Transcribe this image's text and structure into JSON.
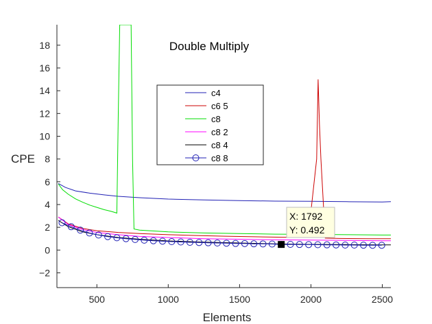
{
  "chart_data": {
    "type": "line",
    "title": "Double Multiply",
    "xlabel": "Elements",
    "ylabel": "CPE",
    "xlim": [
      220,
      2560
    ],
    "ylim": [
      -3.3,
      19.8
    ],
    "x_ticks": [
      500,
      1000,
      1500,
      2000,
      2500
    ],
    "y_ticks": [
      -2,
      0,
      2,
      4,
      6,
      8,
      10,
      12,
      14,
      16,
      18
    ],
    "grid": false,
    "legend_position": "top-center",
    "series": [
      {
        "name": "c4",
        "color": "#1f1fb4",
        "marker": "none",
        "x": [
          230,
          280,
          350,
          450,
          550,
          650,
          800,
          1000,
          1250,
          1500,
          1750,
          2000,
          2250,
          2500,
          2560
        ],
        "y": [
          5.85,
          5.5,
          5.2,
          5.0,
          4.85,
          4.72,
          4.6,
          4.48,
          4.4,
          4.35,
          4.3,
          4.28,
          4.25,
          4.22,
          4.25
        ]
      },
      {
        "name": "c6 5",
        "color": "#cc0000",
        "marker": "none",
        "x": [
          230,
          300,
          400,
          500,
          650,
          800,
          1000,
          1200,
          1400,
          1600,
          1800,
          1980,
          2040,
          2050,
          2060,
          2070,
          2100,
          2200,
          2400,
          2560
        ],
        "y": [
          2.9,
          2.3,
          1.9,
          1.7,
          1.55,
          1.45,
          1.35,
          1.28,
          1.22,
          1.17,
          1.13,
          1.1,
          8.0,
          15.0,
          11.0,
          8.0,
          1.05,
          1.02,
          1.0,
          1.0
        ]
      },
      {
        "name": "c8",
        "color": "#00dd00",
        "marker": "none",
        "x": [
          230,
          260,
          300,
          350,
          400,
          450,
          500,
          550,
          600,
          640,
          650,
          660,
          680,
          700,
          720,
          740,
          750,
          760,
          800,
          1000,
          1250,
          1500,
          1750,
          2000,
          2250,
          2500,
          2560
        ],
        "y": [
          5.8,
          5.3,
          4.9,
          4.5,
          4.2,
          3.95,
          3.75,
          3.55,
          3.4,
          3.25,
          12.0,
          19.8,
          19.8,
          19.8,
          19.8,
          19.8,
          8.0,
          1.85,
          1.75,
          1.6,
          1.5,
          1.45,
          1.4,
          1.38,
          1.35,
          1.32,
          1.32
        ]
      },
      {
        "name": "c8 2",
        "color": "#ff00ff",
        "marker": "none",
        "x": [
          230,
          300,
          400,
          500,
          650,
          800,
          1000,
          1250,
          1500,
          1750,
          2000,
          2250,
          2500,
          2560
        ],
        "y": [
          2.9,
          2.25,
          1.8,
          1.55,
          1.35,
          1.2,
          1.1,
          1.0,
          0.95,
          0.9,
          0.88,
          0.85,
          0.82,
          0.82
        ]
      },
      {
        "name": "c8 4",
        "color": "#000000",
        "marker": "none",
        "x": [
          230,
          300,
          400,
          500,
          650,
          800,
          1000,
          1250,
          1500,
          1750,
          2000,
          2250,
          2500,
          2560
        ],
        "y": [
          2.6,
          2.05,
          1.6,
          1.35,
          1.1,
          0.95,
          0.8,
          0.7,
          0.62,
          0.55,
          0.5,
          0.48,
          0.46,
          0.46
        ]
      },
      {
        "name": "c8 8",
        "color": "#1f1fb4",
        "marker": "circle",
        "x": [
          256,
          320,
          384,
          448,
          512,
          576,
          640,
          704,
          768,
          832,
          896,
          960,
          1024,
          1088,
          1152,
          1216,
          1280,
          1344,
          1408,
          1472,
          1536,
          1600,
          1664,
          1728,
          1792,
          1856,
          1920,
          1984,
          2048,
          2112,
          2176,
          2240,
          2304,
          2368,
          2432,
          2496
        ],
        "y": [
          2.4,
          2.05,
          1.75,
          1.5,
          1.32,
          1.18,
          1.08,
          1.0,
          0.93,
          0.87,
          0.82,
          0.78,
          0.74,
          0.71,
          0.68,
          0.66,
          0.64,
          0.62,
          0.6,
          0.58,
          0.57,
          0.55,
          0.54,
          0.53,
          0.492,
          0.5,
          0.49,
          0.48,
          0.47,
          0.46,
          0.45,
          0.44,
          0.44,
          0.43,
          0.42,
          0.42
        ]
      }
    ],
    "datatip": {
      "x": 1792,
      "y": 0.492,
      "x_label": "X: 1792",
      "y_label": "Y: 0.492"
    }
  }
}
